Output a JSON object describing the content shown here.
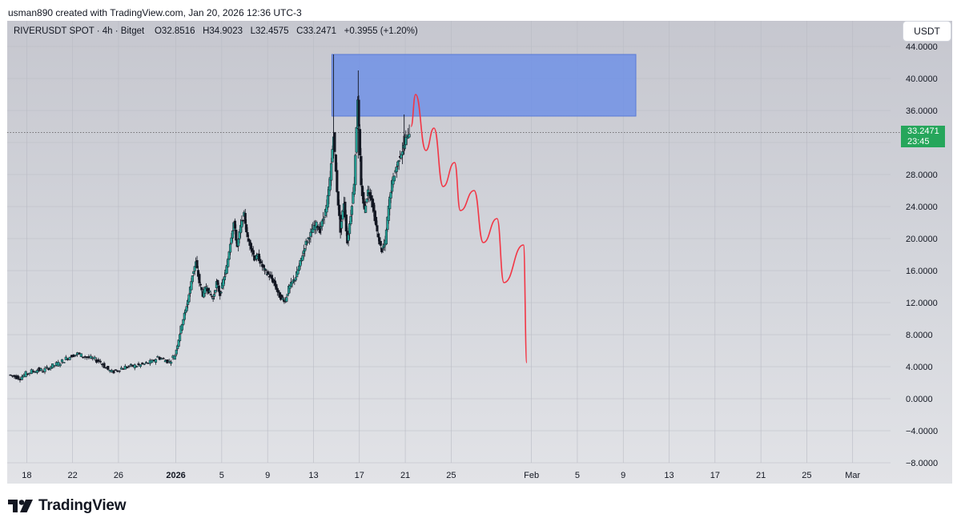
{
  "header": {
    "credit": "usman890 created with TradingView.com, Jan 20, 2026 12:36 UTC-3"
  },
  "legend": {
    "symbol": "RIVERUSDT SPOT · 4h · Bitget",
    "open": "O32.8516",
    "high": "H34.9023",
    "low": "L32.4575",
    "close": "C33.2471",
    "change": "+0.3955 (+1.20%)"
  },
  "toolbar": {
    "currency": "USDT"
  },
  "last_price": {
    "value": "33.2471",
    "countdown": "23:45"
  },
  "brand": {
    "name": "TradingView"
  },
  "colors": {
    "up_candle": "#26a69a",
    "down_candle": "#131722",
    "zone": "#6d8fe6",
    "projection": "#f23645",
    "price_tag": "#26a65b"
  },
  "chart_data": {
    "type": "candlestick",
    "title": "",
    "xlabel": "",
    "ylabel": "",
    "ylim": [
      -8,
      44
    ],
    "y_ticks": [
      "44.0000",
      "40.0000",
      "36.0000",
      "32.0000",
      "28.0000",
      "24.0000",
      "20.0000",
      "16.0000",
      "12.0000",
      "8.0000",
      "4.0000",
      "0.0000",
      "−4.0000",
      "−8.0000"
    ],
    "y_tick_values": [
      44,
      40,
      36,
      32,
      28,
      24,
      20,
      16,
      12,
      8,
      4,
      0,
      -4,
      -8
    ],
    "x_ticks": [
      "18",
      "22",
      "26",
      "2026",
      "5",
      "9",
      "13",
      "17",
      "21",
      "25",
      "Feb",
      "5",
      "9",
      "13",
      "17",
      "21",
      "25",
      "Mar"
    ],
    "x_tick_days": [
      -13,
      -9,
      -5,
      0,
      4,
      8,
      12,
      16,
      20,
      24,
      31,
      35,
      39,
      43,
      47,
      51,
      55,
      59
    ],
    "x_axis_start_day": -14.7,
    "x_axis_end_day": 62.3,
    "price_series_approx": [
      [
        -14.5,
        3.0
      ],
      [
        -14,
        2.8
      ],
      [
        -13.5,
        2.6
      ],
      [
        -13,
        3.1
      ],
      [
        -12.5,
        3.4
      ],
      [
        -12,
        3.6
      ],
      [
        -11.5,
        3.5
      ],
      [
        -11,
        3.9
      ],
      [
        -10.5,
        4.2
      ],
      [
        -10,
        4.5
      ],
      [
        -9.5,
        5.0
      ],
      [
        -9,
        5.4
      ],
      [
        -8.5,
        5.6
      ],
      [
        -8,
        5.3
      ],
      [
        -7.5,
        5.1
      ],
      [
        -7,
        4.9
      ],
      [
        -6.5,
        4.6
      ],
      [
        -6,
        3.8
      ],
      [
        -5.5,
        3.3
      ],
      [
        -5,
        3.6
      ],
      [
        -4.5,
        3.9
      ],
      [
        -4,
        4.0
      ],
      [
        -3.5,
        4.1
      ],
      [
        -3,
        4.2
      ],
      [
        -2.5,
        4.4
      ],
      [
        -2,
        4.6
      ],
      [
        -1.5,
        5.2
      ],
      [
        -1,
        4.9
      ],
      [
        -0.5,
        4.6
      ],
      [
        0,
        5.5
      ],
      [
        0.3,
        7.5
      ],
      [
        0.6,
        9.5
      ],
      [
        0.9,
        11.0
      ],
      [
        1.2,
        13.0
      ],
      [
        1.5,
        15.5
      ],
      [
        1.8,
        17.0
      ],
      [
        2.1,
        14.5
      ],
      [
        2.4,
        13.0
      ],
      [
        2.7,
        14.0
      ],
      [
        3.0,
        13.2
      ],
      [
        3.3,
        12.5
      ],
      [
        3.6,
        14.5
      ],
      [
        3.9,
        13.0
      ],
      [
        4.2,
        14.8
      ],
      [
        4.5,
        16.5
      ],
      [
        4.8,
        19.5
      ],
      [
        5.1,
        22.0
      ],
      [
        5.4,
        19.0
      ],
      [
        5.7,
        21.5
      ],
      [
        6.0,
        23.0
      ],
      [
        6.3,
        20.0
      ],
      [
        6.6,
        19.0
      ],
      [
        6.9,
        17.5
      ],
      [
        7.2,
        17.8
      ],
      [
        7.5,
        16.8
      ],
      [
        7.8,
        16.0
      ],
      [
        8.1,
        15.5
      ],
      [
        8.4,
        15.0
      ],
      [
        8.7,
        14.2
      ],
      [
        9.0,
        13.0
      ],
      [
        9.3,
        12.5
      ],
      [
        9.6,
        12.3
      ],
      [
        9.9,
        13.8
      ],
      [
        10.2,
        14.5
      ],
      [
        10.5,
        15.2
      ],
      [
        10.8,
        16.5
      ],
      [
        11.1,
        18.0
      ],
      [
        11.4,
        19.5
      ],
      [
        11.7,
        20.3
      ],
      [
        12.0,
        21.2
      ],
      [
        12.3,
        21.8
      ],
      [
        12.6,
        21.0
      ],
      [
        12.9,
        22.5
      ],
      [
        13.2,
        24.0
      ],
      [
        13.5,
        27.5
      ],
      [
        13.8,
        33.0
      ],
      [
        14.1,
        26.0
      ],
      [
        14.4,
        21.0
      ],
      [
        14.7,
        24.5
      ],
      [
        15.0,
        19.5
      ],
      [
        15.3,
        23.0
      ],
      [
        15.6,
        27.0
      ],
      [
        15.9,
        37.5
      ],
      [
        16.2,
        26.5
      ],
      [
        16.5,
        23.5
      ],
      [
        16.8,
        26.0
      ],
      [
        17.1,
        25.0
      ],
      [
        17.4,
        22.5
      ],
      [
        17.7,
        20.0
      ],
      [
        18.0,
        18.5
      ],
      [
        18.3,
        19.5
      ],
      [
        18.6,
        24.0
      ],
      [
        18.9,
        27.0
      ],
      [
        19.2,
        28.5
      ],
      [
        19.5,
        30.0
      ],
      [
        19.8,
        31.0
      ],
      [
        20.1,
        32.5
      ],
      [
        20.4,
        33.2
      ]
    ],
    "projection_path": [
      [
        20.5,
        34.0
      ],
      [
        20.9,
        38.0
      ],
      [
        21.8,
        31.0
      ],
      [
        22.5,
        33.8
      ],
      [
        23.3,
        26.5
      ],
      [
        24.3,
        29.5
      ],
      [
        24.8,
        23.5
      ],
      [
        26.0,
        26.0
      ],
      [
        26.8,
        19.5
      ],
      [
        28.0,
        22.5
      ],
      [
        28.6,
        14.5
      ],
      [
        30.3,
        19.2
      ],
      [
        30.6,
        4.5
      ]
    ],
    "zone": {
      "x_start_day": 13.6,
      "x_end_day": 40.1,
      "y_bottom": 35.3,
      "y_top": 43.0
    },
    "current_price_line": 33.2471,
    "grid": true,
    "legend_position": "top-left"
  }
}
